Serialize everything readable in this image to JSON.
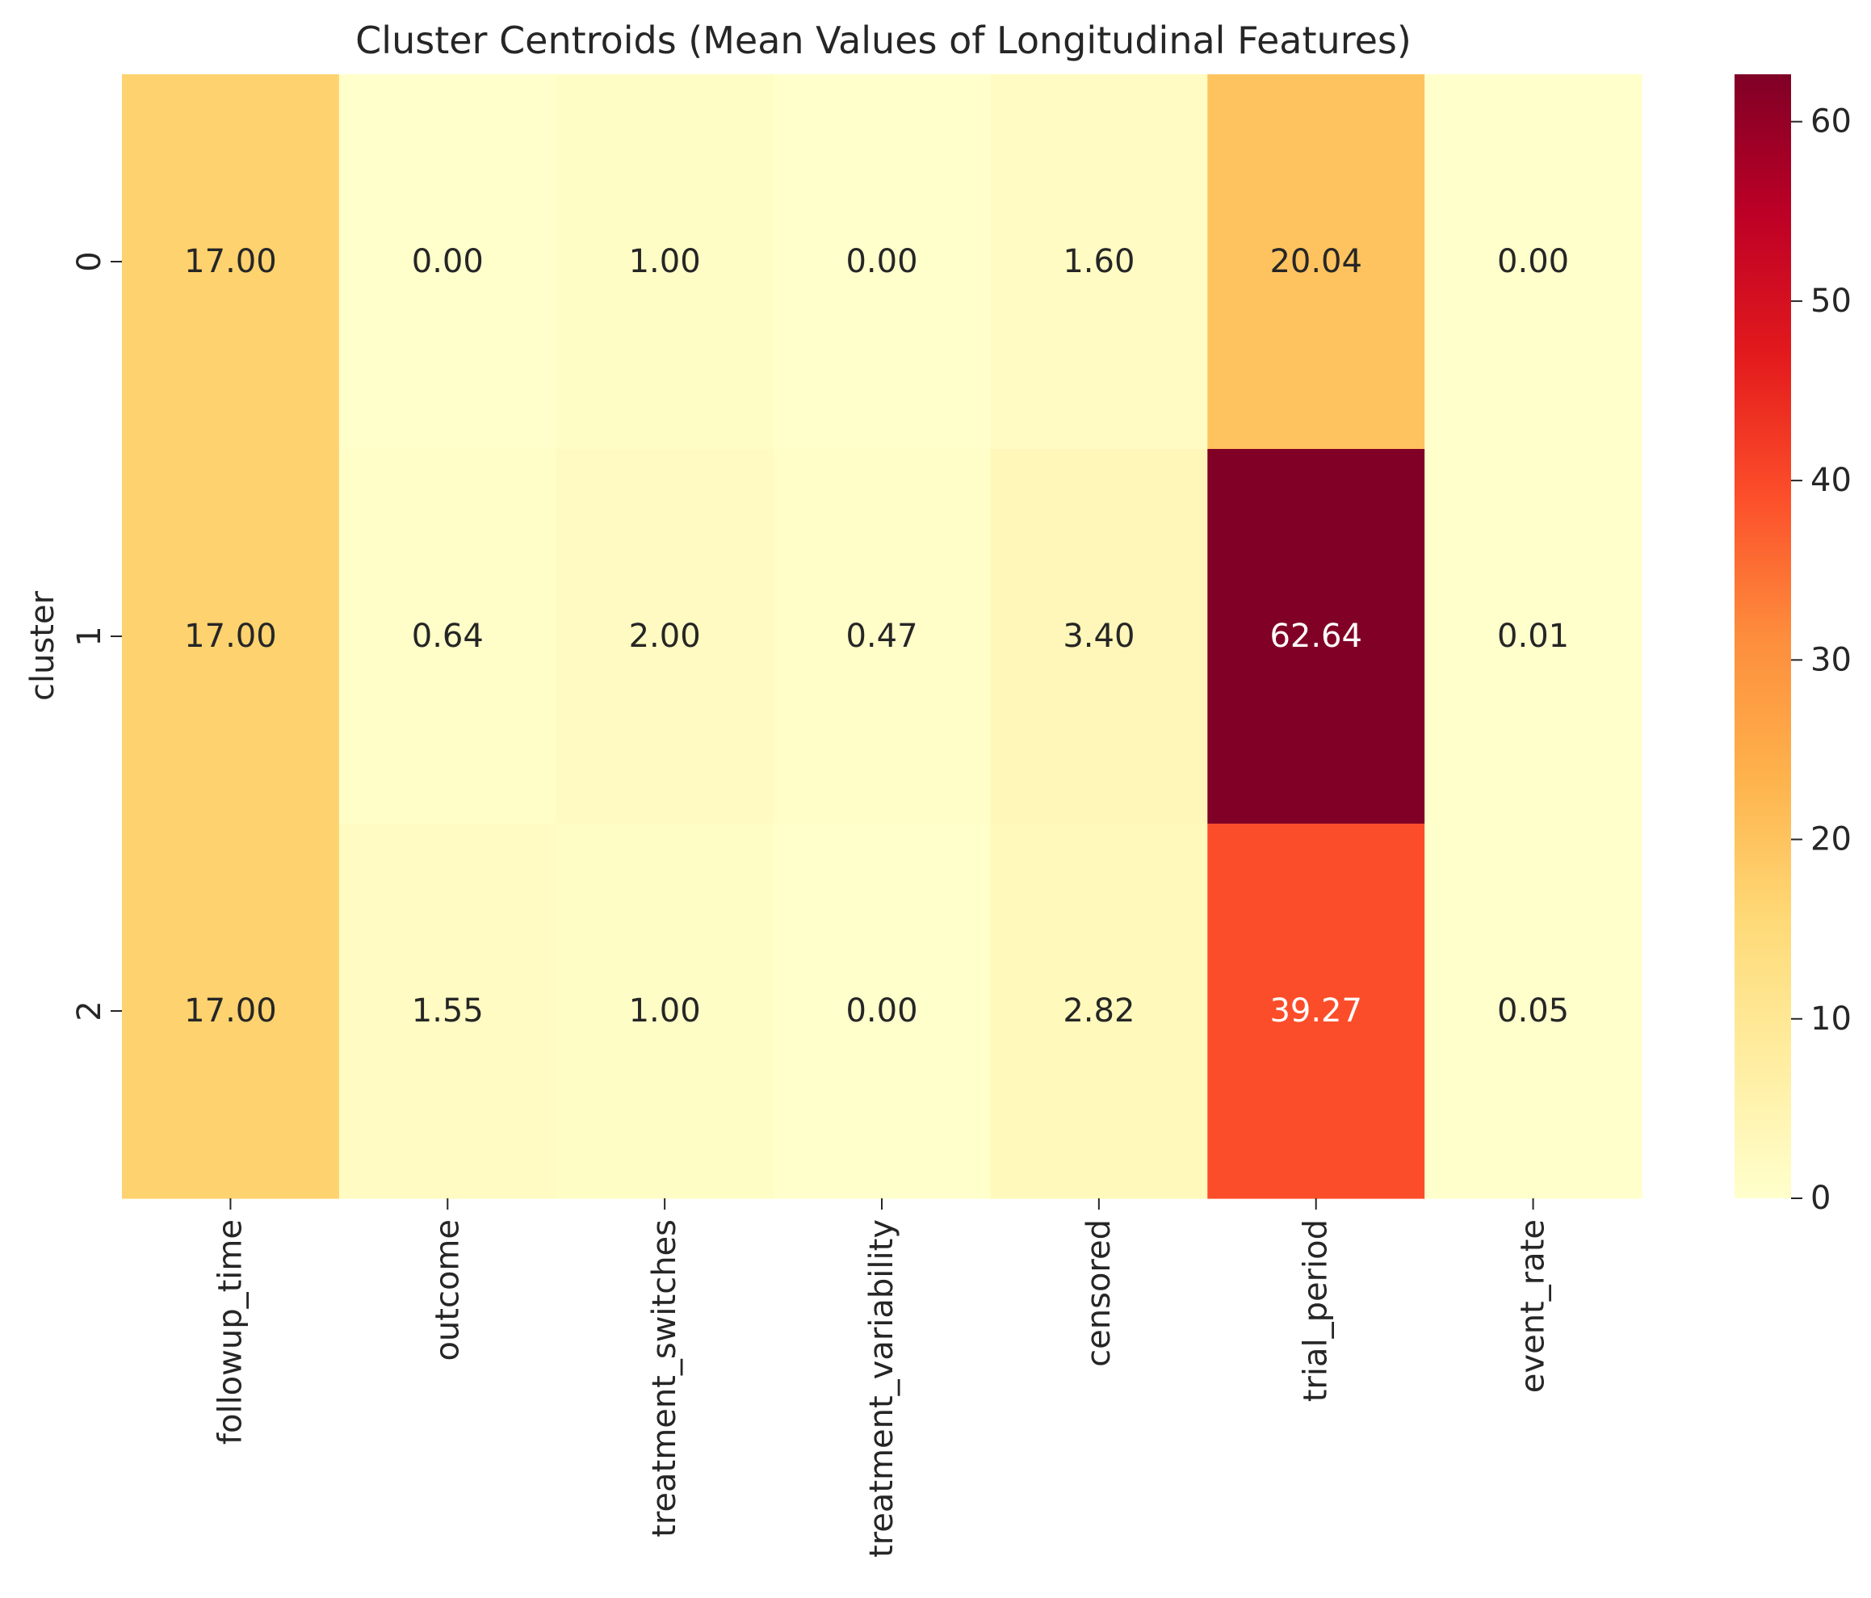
{
  "chart_data": {
    "type": "heatmap",
    "title": "Cluster Centroids (Mean Values of Longitudinal Features)",
    "xlabel": "",
    "ylabel": "cluster",
    "x_categories": [
      "followup_time",
      "outcome",
      "treatment_switches",
      "treatment_variability",
      "censored",
      "trial_period",
      "event_rate"
    ],
    "y_categories": [
      "0",
      "1",
      "2"
    ],
    "values": [
      [
        17.0,
        0.0,
        1.0,
        0.0,
        1.6,
        20.04,
        0.0
      ],
      [
        17.0,
        0.64,
        2.0,
        0.47,
        3.4,
        62.64,
        0.01
      ],
      [
        17.0,
        1.55,
        1.0,
        0.0,
        2.82,
        39.27,
        0.05
      ]
    ],
    "value_format": "2 decimals",
    "colormap": "YlOrRd",
    "colormap_stops": [
      "#ffffcc",
      "#ffeda0",
      "#fed976",
      "#feb24c",
      "#fd8d3c",
      "#fc4e2a",
      "#e31a1c",
      "#bd0026",
      "#800026"
    ],
    "vmin": 0,
    "vmax": 62.64,
    "colorbar": {
      "ticks": [
        0,
        10,
        20,
        30,
        40,
        50,
        60
      ],
      "tick_labels": [
        "0",
        "10",
        "20",
        "30",
        "40",
        "50",
        "60"
      ],
      "placement": "right"
    },
    "label_colors": {
      "dark": "#262626",
      "light": "#ffffff"
    }
  }
}
